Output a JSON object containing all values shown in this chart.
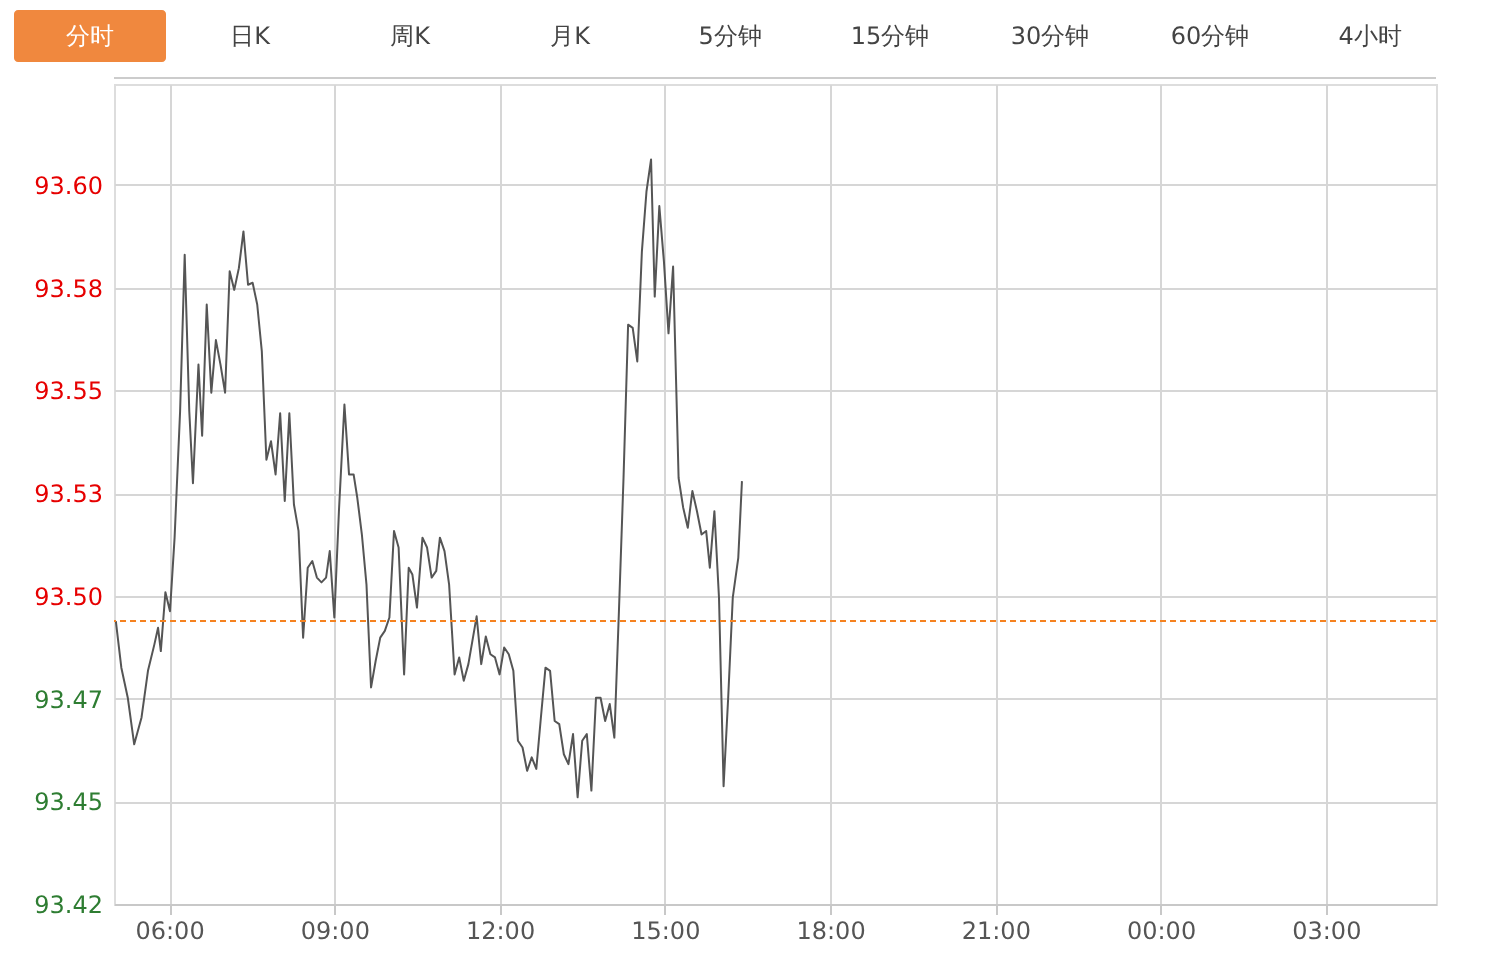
{
  "chart_data": {
    "type": "line",
    "annotations": [
      "分时",
      "日K",
      "周K",
      "月K",
      "5分钟",
      "15分钟",
      "30分钟",
      "60分钟",
      "4小时"
    ],
    "x": [
      "2000-01-01T05:02",
      "2000-01-01T05:08",
      "2000-01-01T05:15",
      "2000-01-01T05:22",
      "2000-01-01T05:30",
      "2000-01-01T05:37",
      "2000-01-01T05:44",
      "2000-01-01T05:48",
      "2000-01-01T05:51",
      "2000-01-01T05:56",
      "2000-01-01T06:01",
      "2000-01-01T06:06",
      "2000-01-01T06:12",
      "2000-01-01T06:17",
      "2000-01-01T06:22",
      "2000-01-01T06:26",
      "2000-01-01T06:32",
      "2000-01-01T06:36",
      "2000-01-01T06:41",
      "2000-01-01T06:46",
      "2000-01-01T06:51",
      "2000-01-01T06:56",
      "2000-01-01T07:01",
      "2000-01-01T07:06",
      "2000-01-01T07:11",
      "2000-01-01T07:16",
      "2000-01-01T07:21",
      "2000-01-01T07:26",
      "2000-01-01T07:31",
      "2000-01-01T07:36",
      "2000-01-01T07:41",
      "2000-01-01T07:46",
      "2000-01-01T07:51",
      "2000-01-01T07:56",
      "2000-01-01T08:01",
      "2000-01-01T08:06",
      "2000-01-01T08:11",
      "2000-01-01T08:16",
      "2000-01-01T08:21",
      "2000-01-01T08:26",
      "2000-01-01T08:31",
      "2000-01-01T08:36",
      "2000-01-01T08:41",
      "2000-01-01T08:46",
      "2000-01-01T08:51",
      "2000-01-01T08:55",
      "2000-01-01T09:00",
      "2000-01-01T09:05",
      "2000-01-01T09:11",
      "2000-01-01T09:16",
      "2000-01-01T09:21",
      "2000-01-01T09:25",
      "2000-01-01T09:30",
      "2000-01-01T09:35",
      "2000-01-01T09:40",
      "2000-01-01T09:45",
      "2000-01-01T09:50",
      "2000-01-01T09:55",
      "2000-01-01T10:00",
      "2000-01-01T10:05",
      "2000-01-01T10:10",
      "2000-01-01T10:16",
      "2000-01-01T10:21",
      "2000-01-01T10:25",
      "2000-01-01T10:30",
      "2000-01-01T10:36",
      "2000-01-01T10:41",
      "2000-01-01T10:46",
      "2000-01-01T10:51",
      "2000-01-01T10:55",
      "2000-01-01T11:00",
      "2000-01-01T11:05",
      "2000-01-01T11:11",
      "2000-01-01T11:16",
      "2000-01-01T11:21",
      "2000-01-01T11:26",
      "2000-01-01T11:31",
      "2000-01-01T11:35",
      "2000-01-01T11:40",
      "2000-01-01T11:45",
      "2000-01-01T11:50",
      "2000-01-01T11:55",
      "2000-01-01T12:00",
      "2000-01-01T12:05",
      "2000-01-01T12:10",
      "2000-01-01T12:15",
      "2000-01-01T12:20",
      "2000-01-01T12:25",
      "2000-01-01T12:30",
      "2000-01-01T12:35",
      "2000-01-01T12:40",
      "2000-01-01T12:45",
      "2000-01-01T12:50",
      "2000-01-01T12:55",
      "2000-01-01T13:00",
      "2000-01-01T13:05",
      "2000-01-01T13:10",
      "2000-01-01T13:15",
      "2000-01-01T13:20",
      "2000-01-01T13:25",
      "2000-01-01T13:30",
      "2000-01-01T13:35",
      "2000-01-01T13:40",
      "2000-01-01T13:45",
      "2000-01-01T13:50",
      "2000-01-01T13:55",
      "2000-01-01T14:00",
      "2000-01-01T14:05",
      "2000-01-01T14:10",
      "2000-01-01T14:15",
      "2000-01-01T14:20",
      "2000-01-01T14:25",
      "2000-01-01T14:30",
      "2000-01-01T14:35",
      "2000-01-01T14:40",
      "2000-01-01T14:45",
      "2000-01-01T14:49",
      "2000-01-01T14:54",
      "2000-01-01T14:59",
      "2000-01-01T15:04",
      "2000-01-01T15:09",
      "2000-01-01T15:15",
      "2000-01-01T15:20",
      "2000-01-01T15:25",
      "2000-01-01T15:30",
      "2000-01-01T15:35",
      "2000-01-01T15:40",
      "2000-01-01T15:45",
      "2000-01-01T15:49",
      "2000-01-01T15:54",
      "2000-01-01T15:59",
      "2000-01-01T16:04",
      "2000-01-01T16:09",
      "2000-01-01T16:14",
      "2000-01-01T16:20",
      "2000-01-01T16:24"
    ],
    "series": [
      {
        "color": "#555555",
        "values": [
          93.4941,
          93.4823,
          93.4747,
          93.4629,
          93.4697,
          93.4815,
          93.4882,
          93.4924,
          93.4865,
          93.5014,
          93.4966,
          93.5152,
          93.5472,
          93.5868,
          93.5472,
          93.529,
          93.559,
          93.541,
          93.5742,
          93.5519,
          93.5652,
          93.559,
          93.5519,
          93.5826,
          93.5779,
          93.5834,
          93.5927,
          93.5792,
          93.5797,
          93.5742,
          93.5624,
          93.5349,
          93.5396,
          93.5312,
          93.5467,
          93.5245,
          93.5467,
          93.5236,
          93.5169,
          93.4899,
          93.5076,
          93.5093,
          93.5051,
          93.5039,
          93.5051,
          93.5118,
          93.495,
          93.5219,
          93.5489,
          93.5312,
          93.5312,
          93.5253,
          93.516,
          93.5034,
          93.4773,
          93.484,
          93.4899,
          93.4916,
          93.495,
          93.5169,
          93.5127,
          93.4806,
          93.5076,
          93.5059,
          93.4975,
          93.5152,
          93.5127,
          93.5051,
          93.5068,
          93.5152,
          93.5118,
          93.5034,
          93.4806,
          93.4849,
          93.479,
          93.4832,
          93.4899,
          93.4953,
          93.4832,
          93.4902,
          93.4857,
          93.4849,
          93.4806,
          93.4874,
          93.4857,
          93.4815,
          93.4638,
          93.4621,
          93.4562,
          93.4596,
          93.4567,
          93.4697,
          93.4823,
          93.4815,
          93.4688,
          93.468,
          93.4604,
          93.4579,
          93.4655,
          93.4495,
          93.4638,
          93.4655,
          93.4512,
          93.4747,
          93.4747,
          93.4688,
          93.4731,
          93.4646,
          93.4966,
          93.5303,
          93.5691,
          93.5683,
          93.5598,
          93.5876,
          93.6028,
          93.6109,
          93.5762,
          93.5991,
          93.5851,
          93.5669,
          93.5838,
          93.5303,
          93.5228,
          93.5177,
          93.527,
          93.5219,
          93.516,
          93.5169,
          93.5076,
          93.5219,
          93.5,
          93.4523,
          93.4747,
          93.5,
          93.5101,
          93.5295
        ]
      }
    ],
    "xlim": [
      "2000-01-01T05:00",
      "2000-01-02T05:00"
    ],
    "xticks": [
      {
        "value": "2000-01-01T06:00",
        "label": "06:00"
      },
      {
        "value": "2000-01-01T09:00",
        "label": "09:00"
      },
      {
        "value": "2000-01-01T12:00",
        "label": "12:00"
      },
      {
        "value": "2000-01-01T15:00",
        "label": "15:00"
      },
      {
        "value": "2000-01-01T18:00",
        "label": "18:00"
      },
      {
        "value": "2000-01-01T21:00",
        "label": "21:00"
      },
      {
        "value": "2000-01-02T00:00",
        "label": "00:00"
      },
      {
        "value": "2000-01-02T03:00",
        "label": "03:00"
      }
    ],
    "ylim": [
      93.4225,
      93.63
    ],
    "yticks": [
      {
        "value": 93.4225,
        "label": "93.42"
      },
      {
        "value": 93.4485,
        "label": "93.45"
      },
      {
        "value": 93.4745,
        "label": "93.47"
      },
      {
        "value": 93.5005,
        "label": "93.50"
      },
      {
        "value": 93.5265,
        "label": "93.53"
      },
      {
        "value": 93.5525,
        "label": "93.55"
      },
      {
        "value": 93.5785,
        "label": "93.58"
      },
      {
        "value": 93.6045,
        "label": "93.60"
      }
    ],
    "grid": true,
    "legend": false,
    "marker": "none",
    "line_style": "solid",
    "ref_lines": [
      {
        "axis": "y",
        "value": 93.4941,
        "color": "#f58220",
        "line_style": "dashed"
      }
    ]
  }
}
